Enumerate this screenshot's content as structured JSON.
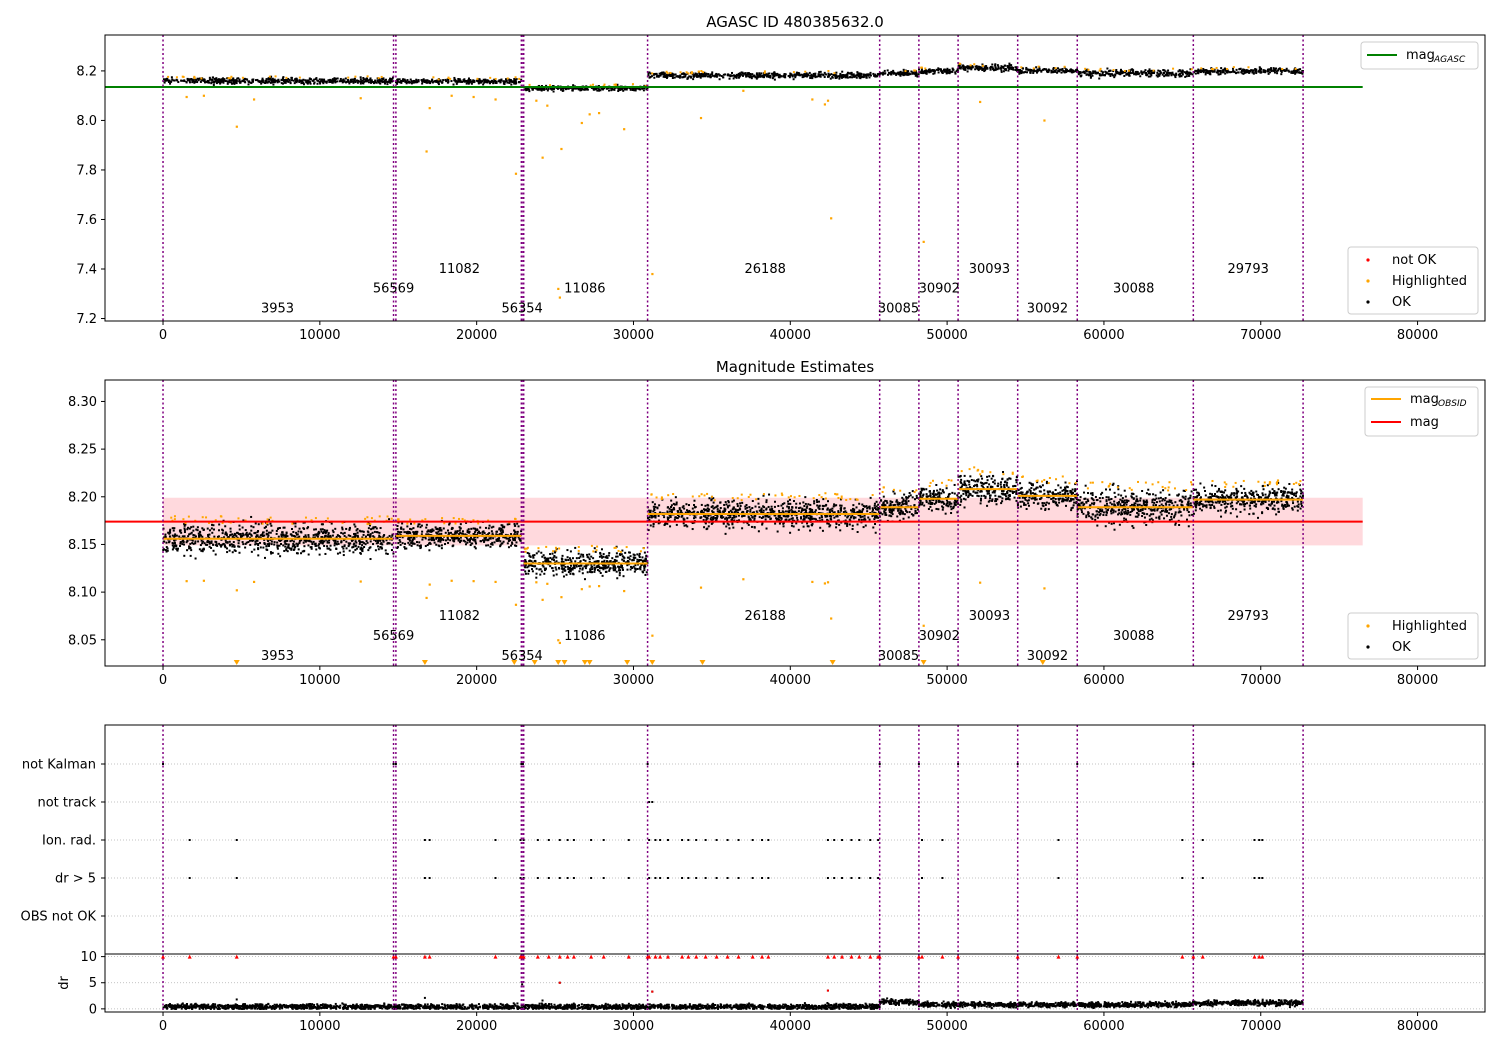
{
  "chart_data": [
    {
      "id": "top",
      "type": "scatter",
      "title": "AGASC ID 480385632.0",
      "xlim": [
        -3700,
        84300
      ],
      "ylim": [
        7.19,
        8.345
      ],
      "xticks": [
        0,
        10000,
        20000,
        30000,
        40000,
        50000,
        60000,
        70000,
        80000
      ],
      "yticks": [
        7.2,
        7.4,
        7.6,
        7.8,
        8.0,
        8.2
      ],
      "ytick_labels": [
        "7.2",
        "7.4",
        "7.6",
        "7.8",
        "8.0",
        "8.2"
      ],
      "mag_agasc": 8.135,
      "obs_boundaries": [
        0,
        14700,
        14850,
        22850,
        22950,
        23000,
        30900,
        45700,
        48200,
        50700,
        54500,
        58300,
        65700,
        72700
      ],
      "obsid_labels": [
        {
          "text": "3953",
          "x": 7300,
          "y": 7.245
        },
        {
          "text": "56569",
          "x": 14700,
          "y": 7.325
        },
        {
          "text": "11082",
          "x": 18900,
          "y": 7.405
        },
        {
          "text": "56354",
          "x": 22900,
          "y": 7.245
        },
        {
          "text": "11086",
          "x": 26900,
          "y": 7.325
        },
        {
          "text": "26188",
          "x": 38400,
          "y": 7.405
        },
        {
          "text": "30085",
          "x": 46900,
          "y": 7.245
        },
        {
          "text": "30902",
          "x": 49500,
          "y": 7.325
        },
        {
          "text": "30093",
          "x": 52700,
          "y": 7.405
        },
        {
          "text": "30092",
          "x": 56400,
          "y": 7.245
        },
        {
          "text": "30088",
          "x": 61900,
          "y": 7.325
        },
        {
          "text": "29793",
          "x": 69200,
          "y": 7.405
        }
      ],
      "segments": [
        {
          "x0": 0,
          "x1": 14700,
          "y": 8.16,
          "spread": 0.014
        },
        {
          "x0": 14850,
          "x1": 22850,
          "y": 8.158,
          "spread": 0.011
        },
        {
          "x0": 23000,
          "x1": 30900,
          "y": 8.13,
          "spread": 0.011
        },
        {
          "x0": 30900,
          "x1": 45700,
          "y": 8.182,
          "spread": 0.013
        },
        {
          "x0": 45700,
          "x1": 48200,
          "y": 8.19,
          "spread": 0.013
        },
        {
          "x0": 48200,
          "x1": 50700,
          "y": 8.198,
          "spread": 0.012
        },
        {
          "x0": 50700,
          "x1": 54500,
          "y": 8.212,
          "spread": 0.014
        },
        {
          "x0": 54500,
          "x1": 58300,
          "y": 8.201,
          "spread": 0.012
        },
        {
          "x0": 58300,
          "x1": 65700,
          "y": 8.19,
          "spread": 0.016
        },
        {
          "x0": 65700,
          "x1": 72700,
          "y": 8.199,
          "spread": 0.012
        }
      ],
      "highlighted_outliers": [
        [
          1500,
          8.095
        ],
        [
          2600,
          8.1
        ],
        [
          4700,
          7.975
        ],
        [
          5800,
          8.085
        ],
        [
          12600,
          8.09
        ],
        [
          16800,
          7.875
        ],
        [
          17000,
          8.05
        ],
        [
          18400,
          8.1
        ],
        [
          19800,
          8.095
        ],
        [
          21200,
          8.085
        ],
        [
          22500,
          7.785
        ],
        [
          23800,
          8.08
        ],
        [
          24500,
          8.06
        ],
        [
          24200,
          7.85
        ],
        [
          25400,
          7.885
        ],
        [
          26700,
          7.99
        ],
        [
          27200,
          8.025
        ],
        [
          27800,
          8.03
        ],
        [
          29400,
          7.965
        ],
        [
          31200,
          7.38
        ],
        [
          34300,
          8.01
        ],
        [
          37000,
          8.12
        ],
        [
          41400,
          8.085
        ],
        [
          42200,
          8.065
        ],
        [
          42600,
          7.605
        ],
        [
          42400,
          8.08
        ],
        [
          48500,
          7.51
        ],
        [
          52100,
          8.075
        ],
        [
          56200,
          8.0
        ],
        [
          25300,
          7.285
        ],
        [
          25200,
          7.32
        ]
      ],
      "legend": {
        "agasc": "mag",
        "agasc_sub": "AGASC",
        "items": [
          "not OK",
          "Highlighted",
          "OK"
        ]
      }
    },
    {
      "id": "middle",
      "type": "scatter",
      "title": "Magnitude Estimates",
      "xlim": [
        -3700,
        84300
      ],
      "ylim": [
        8.0225,
        8.3225
      ],
      "xticks": [
        0,
        10000,
        20000,
        30000,
        40000,
        50000,
        60000,
        70000,
        80000
      ],
      "yticks": [
        8.05,
        8.1,
        8.15,
        8.2,
        8.25,
        8.3
      ],
      "ytick_labels": [
        "8.05",
        "8.10",
        "8.15",
        "8.20",
        "8.25",
        "8.30"
      ],
      "mag": 8.174,
      "mag_band": [
        8.149,
        8.199
      ],
      "obsid_mags": [
        8.156,
        8.159,
        8.13,
        8.182,
        8.189,
        8.198,
        8.208,
        8.201,
        8.189,
        8.197
      ],
      "obsid_labels": [
        {
          "text": "3953",
          "x": 7300,
          "y": 8.034
        },
        {
          "text": "56569",
          "x": 14700,
          "y": 8.055
        },
        {
          "text": "11082",
          "x": 18900,
          "y": 8.076
        },
        {
          "text": "56354",
          "x": 22900,
          "y": 8.034
        },
        {
          "text": "11086",
          "x": 26900,
          "y": 8.055
        },
        {
          "text": "26188",
          "x": 38400,
          "y": 8.076
        },
        {
          "text": "30085",
          "x": 46900,
          "y": 8.034
        },
        {
          "text": "30902",
          "x": 49500,
          "y": 8.055
        },
        {
          "text": "30093",
          "x": 52700,
          "y": 8.076
        },
        {
          "text": "30092",
          "x": 56400,
          "y": 8.034
        },
        {
          "text": "30088",
          "x": 61900,
          "y": 8.055
        },
        {
          "text": "29793",
          "x": 69200,
          "y": 8.076
        }
      ],
      "below_range_markers": [
        4700,
        16700,
        22400,
        23700,
        25200,
        25600,
        26900,
        27200,
        29600,
        31200,
        34400,
        42700,
        48500,
        56100
      ],
      "legend": {
        "obsid": "mag",
        "obsid_sub": "OBSID",
        "mag": "mag",
        "items": [
          "Highlighted",
          "OK"
        ]
      }
    },
    {
      "id": "flags",
      "type": "scatter",
      "xlim": [
        -3700,
        84300
      ],
      "rows": [
        "not Kalman",
        "not track",
        "Ion. rad.",
        "dr > 5",
        "OBS not OK"
      ],
      "flag_x": {
        "not Kalman": [
          0,
          14700,
          14850,
          22850,
          22950,
          30900,
          45700,
          48200,
          50700,
          54500,
          58300,
          65700
        ],
        "not track": [
          31000,
          31200
        ],
        "Ion. rad.": [
          1700,
          4700,
          16700,
          17000,
          21200,
          22800,
          23000,
          23900,
          24600,
          25300,
          25800,
          26200,
          27300,
          28100,
          29700,
          31000,
          31400,
          31700,
          32200,
          33100,
          33500,
          34000,
          34600,
          35300,
          36000,
          36700,
          37600,
          38200,
          38600,
          42400,
          42800,
          43300,
          43900,
          44400,
          45100,
          45600,
          48400,
          49700,
          57100,
          65000,
          66300,
          69600,
          69900,
          70100
        ],
        "dr > 5": [
          1700,
          4700,
          16700,
          17000,
          21200,
          22800,
          23000,
          23900,
          24600,
          25300,
          25800,
          26200,
          27300,
          28100,
          29700,
          31000,
          31400,
          31700,
          32200,
          33100,
          33500,
          34000,
          34600,
          35300,
          36000,
          36700,
          37600,
          38200,
          38600,
          42400,
          42800,
          43300,
          43900,
          44400,
          45100,
          45600,
          48400,
          49700,
          57100,
          65000,
          66300,
          69600,
          69900,
          70100
        ],
        "OBS not OK": []
      }
    },
    {
      "id": "dr",
      "type": "scatter",
      "ylabel": "dr",
      "xlim": [
        -3700,
        84300
      ],
      "xticks": [
        0,
        10000,
        20000,
        30000,
        40000,
        50000,
        60000,
        70000,
        80000
      ],
      "yticks": [
        0,
        5,
        10
      ],
      "ytick_labels": [
        "0",
        "5",
        "10"
      ],
      "ylim": [
        -0.6,
        10.5
      ],
      "dr_levels": [
        {
          "x0": 0,
          "x1": 45700,
          "y": 0.4
        },
        {
          "x0": 45700,
          "x1": 48200,
          "y": 1.3
        },
        {
          "x0": 48200,
          "x1": 65700,
          "y": 0.8
        },
        {
          "x0": 65700,
          "x1": 72700,
          "y": 1.1
        }
      ],
      "dr_outliers": [
        [
          16700,
          2.1
        ],
        [
          22900,
          4.7
        ],
        [
          24200,
          1.6
        ],
        [
          25300,
          5.0
        ],
        [
          31200,
          3.3
        ],
        [
          42400,
          3.5
        ],
        [
          4700,
          1.8
        ]
      ]
    }
  ],
  "colors": {
    "ok": "#000000",
    "highlighted": "#ffa500",
    "not_ok": "#ff0000",
    "agasc_line": "#008000",
    "mag_line": "#ff0000",
    "obsid_line": "#ffa500",
    "band": "#ffd9dd",
    "boundary": "#800080",
    "grid": "#b0b0b0"
  },
  "x_tick_labels": [
    "0",
    "10000",
    "20000",
    "30000",
    "40000",
    "50000",
    "60000",
    "70000",
    "80000"
  ]
}
